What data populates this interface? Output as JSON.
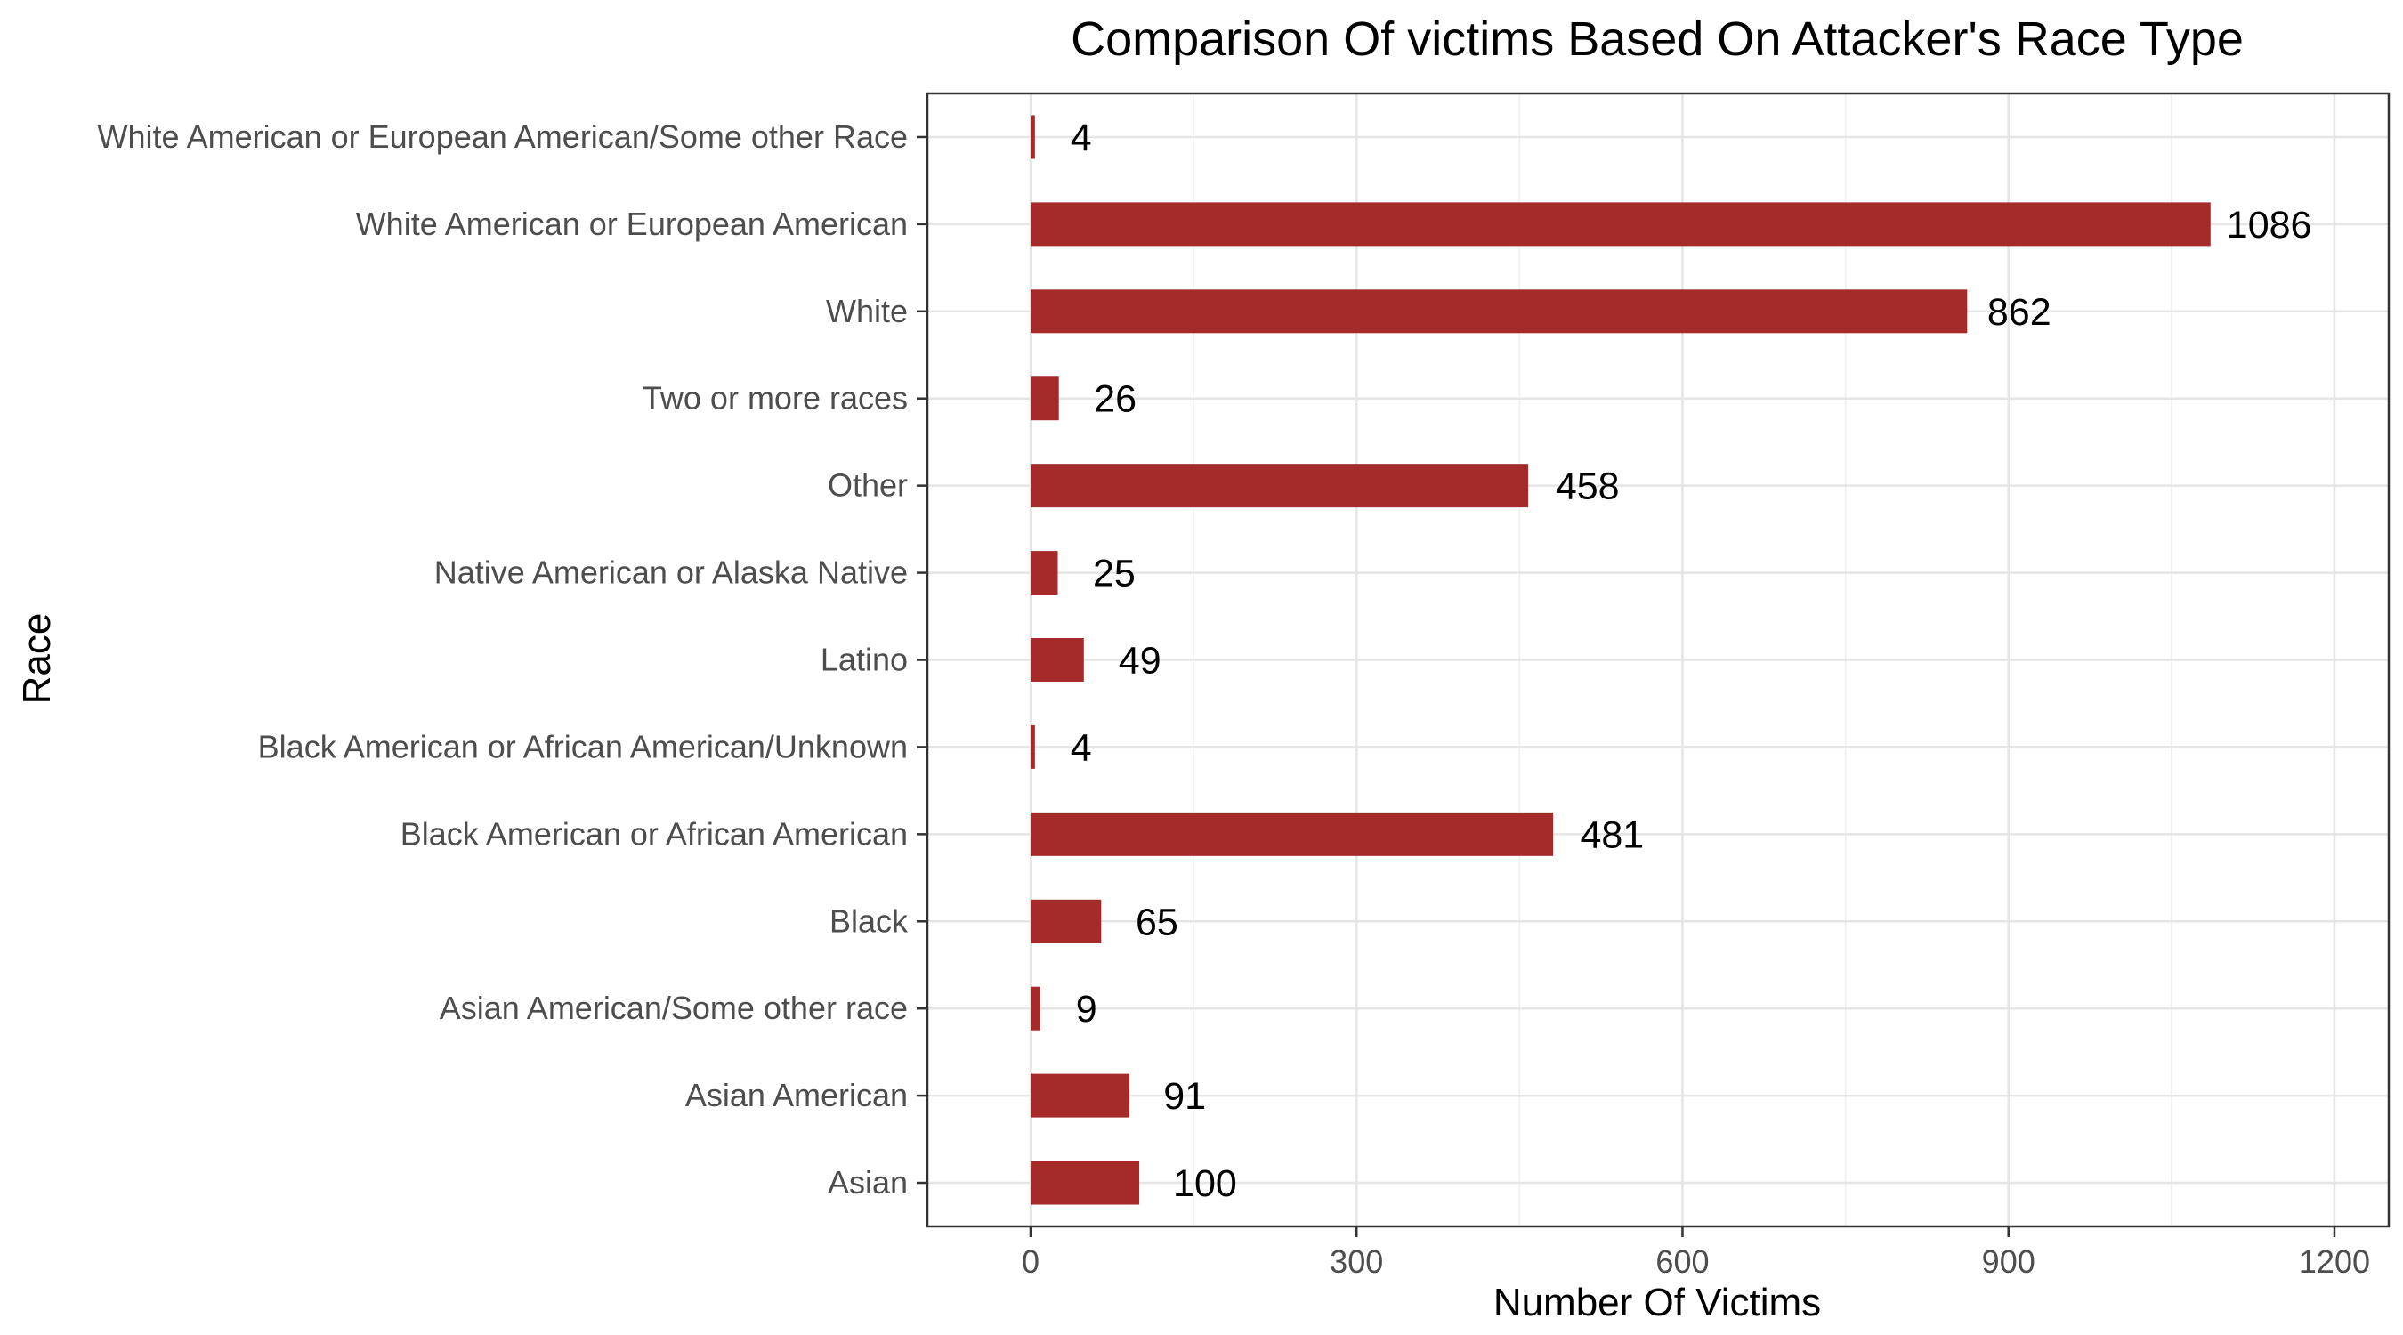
{
  "chart_data": {
    "type": "bar",
    "orientation": "horizontal",
    "title": "Comparison Of victims Based On Attacker's Race Type",
    "xlabel": "Number Of Victims",
    "ylabel": "Race",
    "xlim": [
      -95,
      1250
    ],
    "xticks": [
      0,
      300,
      600,
      900,
      1200
    ],
    "grid": true,
    "legend": "none",
    "bar_color": "#a52a2a",
    "categories": [
      "White American or European American/Some other Race",
      "White American or European American",
      "White",
      "Two or more races",
      "Other",
      "Native American or Alaska Native",
      "Latino",
      "Black American or African American/Unknown",
      "Black American or African American",
      "Black",
      "Asian American/Some other race",
      "Asian American",
      "Asian"
    ],
    "values": [
      4,
      1086,
      862,
      26,
      458,
      25,
      49,
      4,
      481,
      65,
      9,
      91,
      100
    ]
  }
}
